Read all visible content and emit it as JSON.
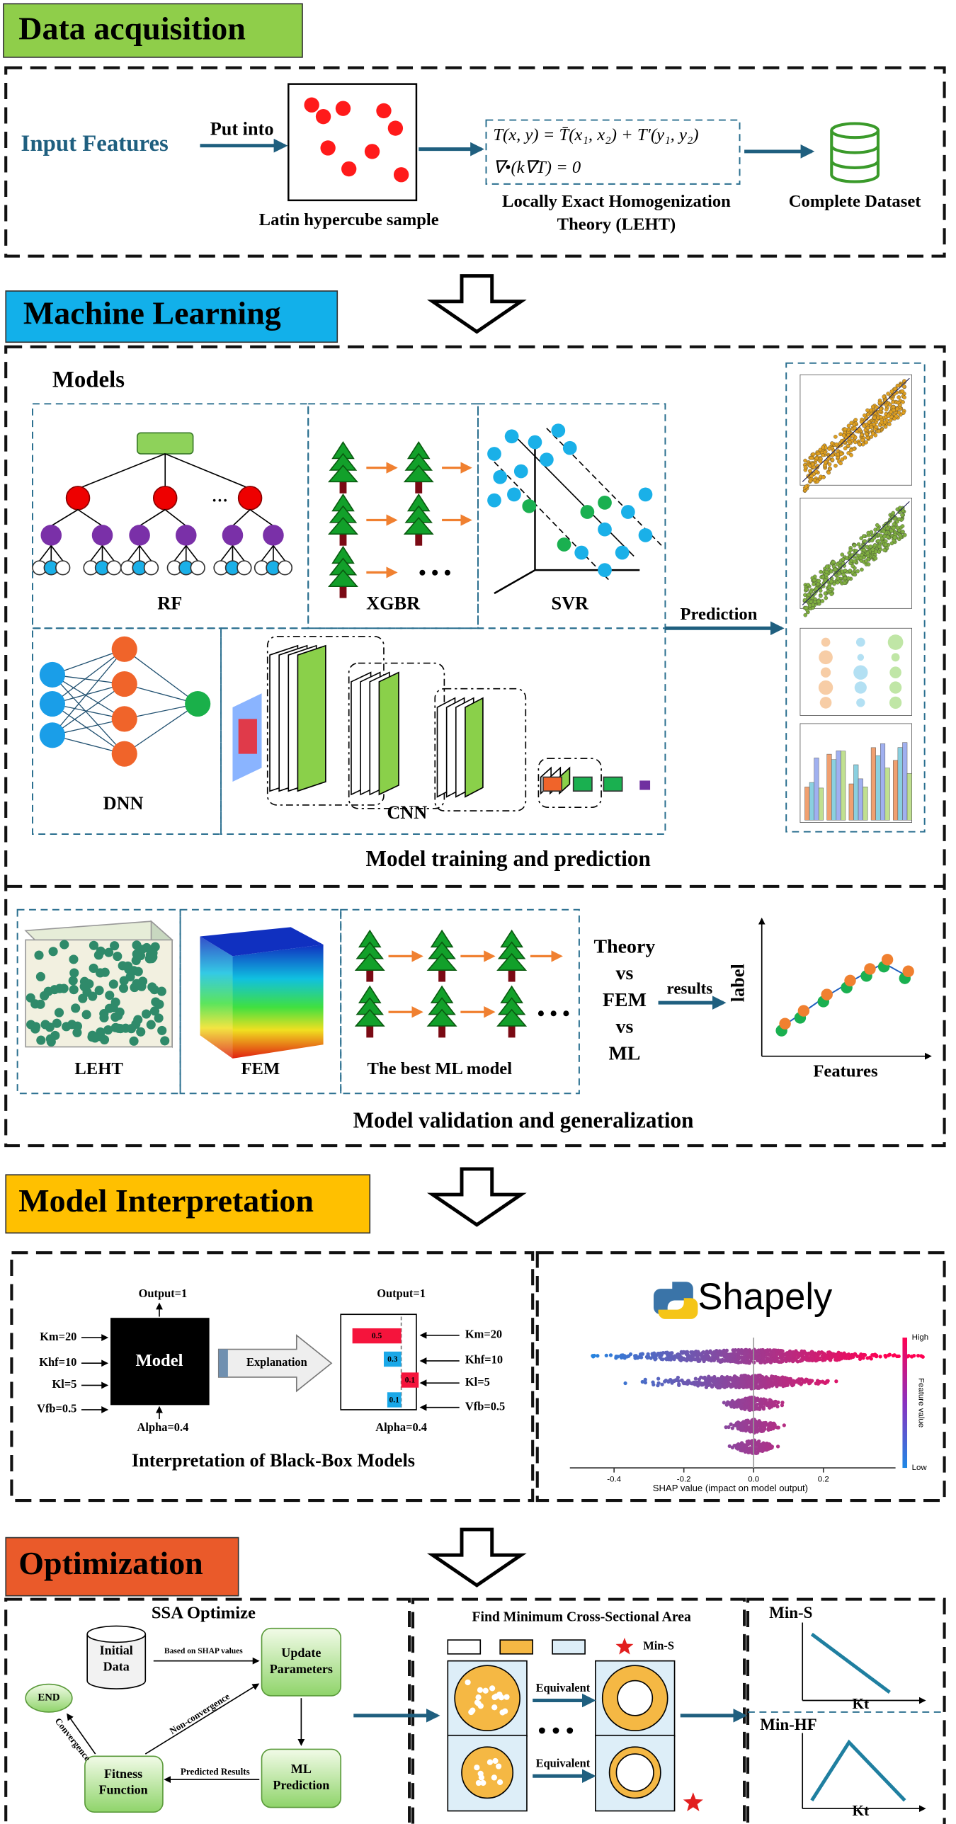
{
  "data_acquisition": {
    "title": "Data acquisition",
    "input_features": "Input Features",
    "put_into": "Put into",
    "sample_label": "Latin hypercube sample",
    "equations": [
      "T(x, y) = T̄(x₁, x₂) + T′(y₁, y₂)",
      "∇•(k∇T) = 0"
    ],
    "theory": [
      "Locally Exact Homogenization",
      "Theory (LEHT)"
    ],
    "dataset": "Complete Dataset"
  },
  "machine_learning": {
    "title": "Machine Learning",
    "models_heading": "Models",
    "models": [
      "RF",
      "XGBR",
      "SVR",
      "DNN",
      "CNN"
    ],
    "prediction": "Prediction",
    "training_caption": "Model training and prediction",
    "validation_models": [
      "LEHT",
      "FEM",
      "The best ML model"
    ],
    "comparison": [
      "Theory",
      "vs",
      "FEM",
      "vs",
      "ML"
    ],
    "results": "results",
    "y_label": "label",
    "x_label": "Features",
    "validation_caption": "Model validation and generalization"
  },
  "model_interpretation": {
    "title": "Model Interpretation",
    "output": "Output=1",
    "inputs": [
      "Km=20",
      "Khf=10",
      "Kl=5",
      "Vfb=0.5"
    ],
    "model": "Model",
    "alpha": "Alpha=0.4",
    "explanation": "Explanation",
    "contributions": [
      "0.5",
      "0.3",
      "0.1",
      "0.1"
    ],
    "caption": "Interpretation of Black-Box Models",
    "shap_title": "Shapely",
    "shap_ticks": [
      "-0.4",
      "-0.2",
      "0.0",
      "0.2"
    ],
    "shap_axis": "SHAP value (impact on model output)",
    "colorbar": {
      "high": "High",
      "low": "Low",
      "label": "Feature value"
    }
  },
  "optimization": {
    "title": "Optimization",
    "ssa": "SSA Optimize",
    "initial_data": [
      "Initial",
      "Data"
    ],
    "based_on": "Based on SHAP values",
    "update": [
      "Update",
      "Parameters"
    ],
    "ml_prediction": [
      "ML",
      "Prediction"
    ],
    "predicted_results": "Predicted Results",
    "fitness": [
      "Fitness",
      "Function"
    ],
    "non_convergence": "Non-convergence",
    "convergence": "Convergence",
    "end": "END",
    "find_title": "Find Minimum Cross-Sectional Area",
    "legend_star": "Min-S",
    "equivalent": [
      "Equivalent",
      "Equivalent"
    ],
    "plots": [
      {
        "title": "Min-S",
        "x_label": "Kt"
      },
      {
        "title": "Min-HF",
        "x_label": "Kt"
      }
    ]
  }
}
